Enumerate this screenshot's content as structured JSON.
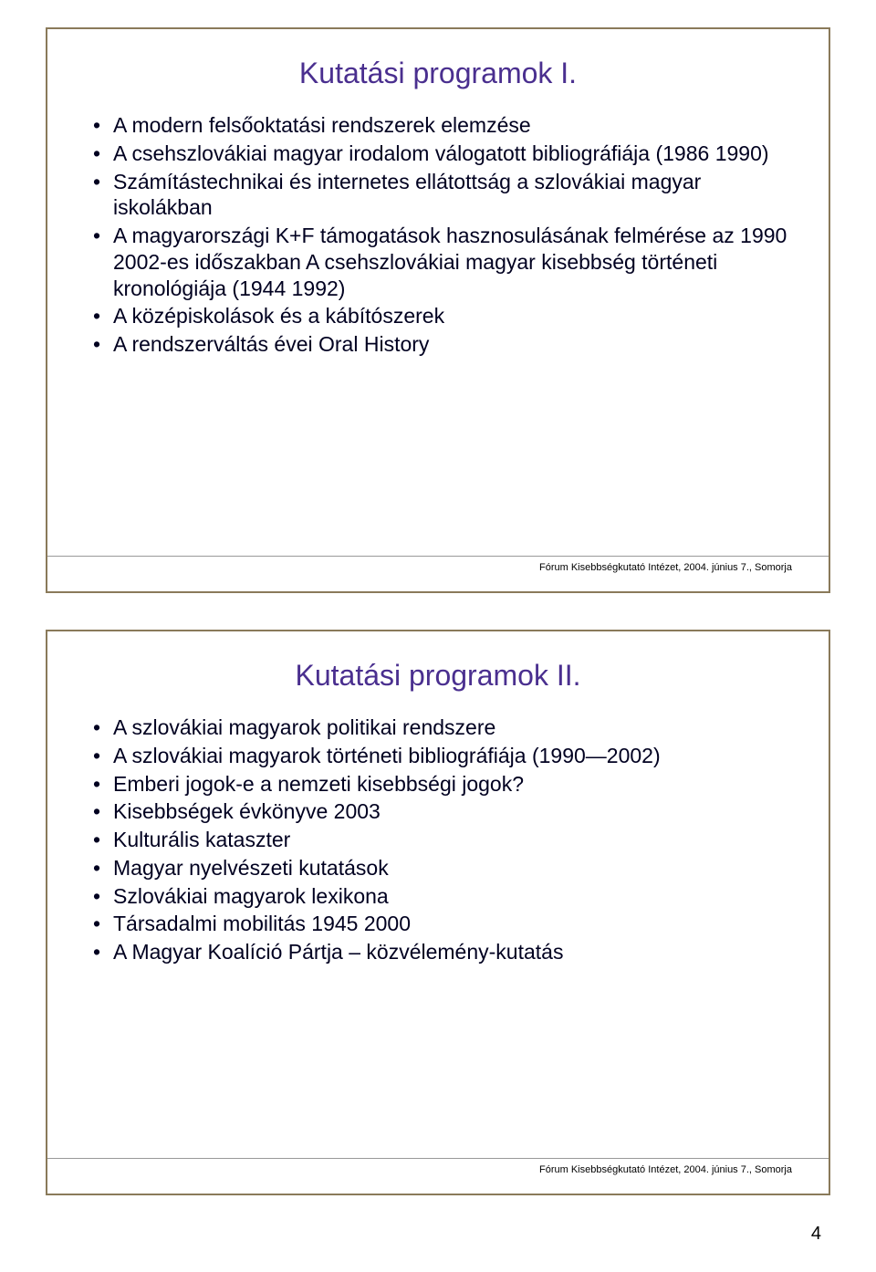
{
  "pageNumber": "4",
  "slides": [
    {
      "title": "Kutatási programok I.",
      "bullets": [
        "A modern felsőoktatási rendszerek elemzése",
        "A csehszlovákiai magyar irodalom válogatott bibliográfiája (1986 1990)",
        "Számítástechnikai és internetes ellátottság a szlovákiai magyar iskolákban",
        "A magyarországi K+F támogatások hasznosulásának felmérése az 1990 2002-es időszakban A csehszlovákiai magyar kisebbség történeti kronológiája (1944 1992)",
        "A középiskolások és a kábítószerek",
        "A rendszerváltás évei Oral History"
      ],
      "footer": "Fórum Kisebbségkutató Intézet, 2004. június 7., Somorja"
    },
    {
      "title": "Kutatási programok II.",
      "bullets": [
        "A szlovákiai magyarok politikai rendszere",
        "A szlovákiai magyarok történeti bibliográfiája (1990—2002)",
        "Emberi jogok-e a nemzeti kisebbségi jogok?",
        "Kisebbségek évkönyve 2003",
        "Kulturális kataszter",
        "Magyar nyelvészeti kutatások",
        "Szlovákiai magyarok lexikona",
        "Társadalmi mobilitás 1945 2000",
        "A Magyar Koalíció Pártja – közvélemény-kutatás"
      ],
      "footer": "Fórum Kisebbségkutató Intézet, 2004. június 7., Somorja"
    }
  ],
  "colors": {
    "titleColor": "#4a2f8f",
    "borderColor": "#8a7a5a",
    "textColor": "#000020",
    "background": "#ffffff"
  },
  "typography": {
    "titleFontSize": 32,
    "bulletFontSize": 23,
    "footerFontSize": 11,
    "pageNumberFontSize": 20
  }
}
